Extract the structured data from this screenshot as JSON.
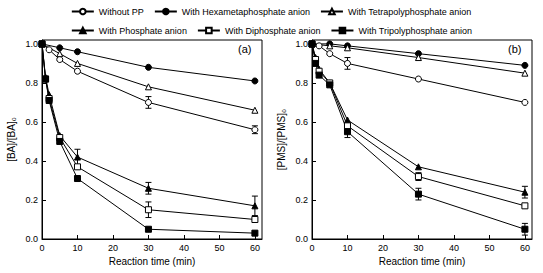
{
  "chart_data": [
    {
      "type": "line",
      "annotation": "(a)",
      "x_label": "Reaction time (min)",
      "y_label": "[BA]/[BA]₀",
      "xlim": [
        0,
        62
      ],
      "xticks": [
        0,
        10,
        20,
        30,
        40,
        50,
        60
      ],
      "ylim": [
        0,
        1.02
      ],
      "yticks": [
        {
          "value": 0,
          "label": "0.0"
        },
        {
          "value": 0.2,
          "label": "0.2"
        },
        {
          "value": 0.4,
          "label": "0.4"
        },
        {
          "value": 0.6,
          "label": "0.6"
        },
        {
          "value": 0.8,
          "label": "0.8"
        },
        {
          "value": 1.0,
          "label": "1.0"
        }
      ],
      "legend": "top",
      "series": [
        {
          "name": "Without PP",
          "color": "#000000",
          "marker": "circle-open",
          "line_style": "solid",
          "x": [
            0,
            2,
            5,
            10,
            30,
            60
          ],
          "values": [
            1.0,
            0.97,
            0.92,
            0.86,
            0.7,
            0.56
          ],
          "errors": [
            null,
            null,
            null,
            null,
            0.03,
            0.02
          ]
        },
        {
          "name": "With Hexametaphosphate anion",
          "color": "#000000",
          "marker": "circle",
          "line_style": "solid",
          "x": [
            0,
            5,
            10,
            30,
            60
          ],
          "values": [
            1.0,
            0.98,
            0.96,
            0.88,
            0.81
          ],
          "errors": [
            null,
            null,
            null,
            null,
            null
          ]
        },
        {
          "name": "With Tetrapolyphosphate anion",
          "color": "#000000",
          "marker": "triangle-open",
          "line_style": "solid",
          "x": [
            0,
            5,
            10,
            30,
            60
          ],
          "values": [
            1.0,
            0.95,
            0.9,
            0.78,
            0.66
          ],
          "errors": [
            null,
            null,
            null,
            null,
            null
          ]
        },
        {
          "name": "With Phosphate anion",
          "color": "#000000",
          "marker": "triangle",
          "line_style": "solid",
          "x": [
            0,
            1,
            2,
            5,
            10,
            30,
            60
          ],
          "values": [
            1.0,
            0.83,
            0.74,
            0.53,
            0.42,
            0.26,
            0.17
          ],
          "errors": [
            null,
            null,
            null,
            null,
            0.04,
            0.03,
            0.05
          ]
        },
        {
          "name": "With Diphosphate anion",
          "color": "#000000",
          "marker": "square-open",
          "line_style": "solid",
          "x": [
            0,
            1,
            2,
            5,
            10,
            30,
            60
          ],
          "values": [
            1.0,
            0.82,
            0.72,
            0.52,
            0.37,
            0.15,
            0.1
          ],
          "errors": [
            null,
            null,
            null,
            null,
            null,
            0.04,
            null
          ]
        },
        {
          "name": "With Tripolyphosphate anion",
          "color": "#000000",
          "marker": "square",
          "line_style": "solid",
          "x": [
            0,
            1,
            2,
            5,
            10,
            30,
            60
          ],
          "values": [
            1.0,
            0.82,
            0.71,
            0.5,
            0.31,
            0.05,
            0.03
          ],
          "errors": [
            null,
            null,
            null,
            null,
            null,
            null,
            null
          ]
        }
      ]
    },
    {
      "type": "line",
      "annotation": "(b)",
      "x_label": "Reaction time (min)",
      "y_label": "[PMS]/[PMS]₀",
      "xlim": [
        0,
        62
      ],
      "xticks": [
        0,
        10,
        20,
        30,
        40,
        50,
        60
      ],
      "ylim": [
        0,
        1.02
      ],
      "yticks": [
        {
          "value": 0,
          "label": "0.0"
        },
        {
          "value": 0.2,
          "label": "0.2"
        },
        {
          "value": 0.4,
          "label": "0.4"
        },
        {
          "value": 0.6,
          "label": "0.6"
        },
        {
          "value": 0.8,
          "label": "0.8"
        },
        {
          "value": 1.0,
          "label": "1.0"
        }
      ],
      "legend": "top",
      "series": [
        {
          "name": "Without PP",
          "color": "#000000",
          "marker": "circle-open",
          "line_style": "solid",
          "x": [
            0,
            2,
            5,
            10,
            30,
            60
          ],
          "values": [
            1.0,
            0.99,
            0.95,
            0.9,
            0.82,
            0.7
          ],
          "errors": [
            null,
            null,
            null,
            0.03,
            null,
            null
          ]
        },
        {
          "name": "With Hexametaphosphate anion",
          "color": "#000000",
          "marker": "circle",
          "line_style": "solid",
          "x": [
            0,
            5,
            10,
            30,
            60
          ],
          "values": [
            1.0,
            1.0,
            0.99,
            0.95,
            0.89
          ],
          "errors": [
            null,
            null,
            null,
            null,
            null
          ]
        },
        {
          "name": "With Tetrapolyphosphate anion",
          "color": "#000000",
          "marker": "triangle-open",
          "line_style": "solid",
          "x": [
            0,
            5,
            10,
            30,
            60
          ],
          "values": [
            1.0,
            0.99,
            0.98,
            0.93,
            0.85
          ],
          "errors": [
            null,
            null,
            null,
            null,
            null
          ]
        },
        {
          "name": "With Phosphate anion",
          "color": "#000000",
          "marker": "triangle",
          "line_style": "solid",
          "x": [
            0,
            1,
            2,
            5,
            10,
            30,
            60
          ],
          "values": [
            1.0,
            0.93,
            0.87,
            0.8,
            0.61,
            0.37,
            0.24
          ],
          "errors": [
            null,
            null,
            null,
            null,
            null,
            null,
            0.03
          ]
        },
        {
          "name": "With Diphosphate anion",
          "color": "#000000",
          "marker": "square-open",
          "line_style": "solid",
          "x": [
            0,
            1,
            2,
            5,
            10,
            30,
            60
          ],
          "values": [
            1.0,
            0.92,
            0.86,
            0.8,
            0.58,
            0.32,
            0.17
          ],
          "errors": [
            null,
            null,
            null,
            null,
            null,
            0.02,
            null
          ]
        },
        {
          "name": "With Tripolyphosphate anion",
          "color": "#000000",
          "marker": "square",
          "line_style": "solid",
          "x": [
            0,
            1,
            2,
            5,
            10,
            30,
            60
          ],
          "values": [
            1.0,
            0.9,
            0.84,
            0.79,
            0.55,
            0.23,
            0.05
          ],
          "errors": [
            null,
            null,
            null,
            null,
            0.03,
            0.03,
            0.03
          ]
        }
      ]
    }
  ]
}
